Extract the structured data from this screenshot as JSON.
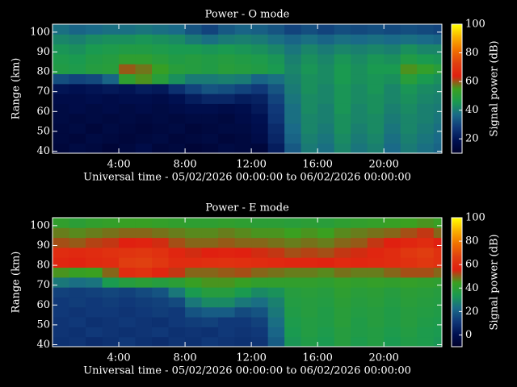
{
  "chart_data": [
    {
      "type": "heatmap",
      "title": "Power - O mode",
      "xlabel": "Universal time - 05/02/2026 00:00:00 to 06/02/2026 00:00:00",
      "ylabel": "Range (km)",
      "colorbar_label": "Signal power (dB)",
      "x_bins": [
        0,
        1,
        2,
        3,
        4,
        5,
        6,
        7,
        8,
        9,
        10,
        11,
        12,
        13,
        14,
        15,
        16,
        17,
        18,
        19,
        20,
        21,
        22,
        23,
        23.5
      ],
      "y_bins": [
        39,
        44,
        49,
        54,
        59,
        64,
        69,
        74,
        79,
        84,
        89,
        94,
        99,
        104
      ],
      "xlim": [
        0,
        23.5
      ],
      "ylim": [
        39,
        104
      ],
      "zlim": [
        10,
        100
      ],
      "xticks": [
        {
          "value": 4,
          "label": "4:00"
        },
        {
          "value": 8,
          "label": "8:00"
        },
        {
          "value": 12,
          "label": "12:00"
        },
        {
          "value": 16,
          "label": "16:00"
        },
        {
          "value": 20,
          "label": "20:00"
        }
      ],
      "yticks": [
        40,
        50,
        60,
        70,
        80,
        90,
        100
      ],
      "zticks": [
        20,
        40,
        60,
        80,
        100
      ],
      "colormap": [
        "#00002a",
        "#001050",
        "#103878",
        "#1a6a88",
        "#1a9a50",
        "#3aa020",
        "#e02010",
        "#e04010",
        "#f07000",
        "#f8b000",
        "#ffff00"
      ],
      "z": [
        [
          14,
          16,
          15,
          13,
          15,
          17,
          14,
          15,
          13,
          14,
          16,
          15,
          14,
          22,
          34,
          40,
          38,
          42,
          39,
          41,
          37,
          40,
          38,
          36
        ],
        [
          15,
          14,
          16,
          15,
          14,
          15,
          16,
          14,
          15,
          16,
          14,
          15,
          17,
          24,
          36,
          41,
          39,
          43,
          40,
          42,
          38,
          41,
          39,
          37
        ],
        [
          15,
          16,
          14,
          16,
          15,
          14,
          15,
          16,
          14,
          15,
          16,
          16,
          18,
          25,
          37,
          42,
          40,
          44,
          41,
          43,
          39,
          42,
          40,
          38
        ],
        [
          16,
          15,
          16,
          15,
          16,
          15,
          16,
          15,
          16,
          16,
          15,
          17,
          19,
          27,
          38,
          42,
          41,
          44,
          42,
          43,
          40,
          42,
          41,
          39
        ],
        [
          16,
          17,
          16,
          17,
          16,
          17,
          16,
          17,
          18,
          18,
          17,
          18,
          21,
          28,
          38,
          43,
          41,
          45,
          42,
          44,
          41,
          43,
          41,
          40
        ],
        [
          17,
          17,
          18,
          17,
          18,
          18,
          17,
          19,
          22,
          24,
          24,
          22,
          23,
          30,
          39,
          43,
          42,
          45,
          43,
          44,
          42,
          44,
          42,
          41
        ],
        [
          20,
          19,
          20,
          21,
          20,
          22,
          21,
          26,
          30,
          33,
          32,
          30,
          28,
          33,
          40,
          44,
          42,
          45,
          43,
          45,
          42,
          45,
          43,
          42
        ],
        [
          32,
          30,
          31,
          36,
          52,
          56,
          50,
          44,
          40,
          40,
          41,
          40,
          36,
          38,
          41,
          44,
          43,
          46,
          44,
          45,
          44,
          50,
          46,
          44
        ],
        [
          48,
          47,
          49,
          50,
          60,
          58,
          54,
          50,
          49,
          48,
          50,
          49,
          48,
          46,
          42,
          45,
          43,
          46,
          44,
          46,
          46,
          56,
          53,
          50
        ],
        [
          47,
          46,
          48,
          49,
          52,
          52,
          50,
          48,
          49,
          48,
          49,
          48,
          47,
          45,
          41,
          44,
          42,
          45,
          43,
          45,
          44,
          48,
          46,
          45
        ],
        [
          45,
          44,
          46,
          47,
          48,
          48,
          47,
          46,
          46,
          45,
          46,
          45,
          44,
          42,
          39,
          42,
          40,
          42,
          41,
          42,
          41,
          44,
          42,
          42
        ],
        [
          42,
          41,
          43,
          44,
          44,
          45,
          44,
          43,
          40,
          38,
          40,
          41,
          40,
          38,
          36,
          38,
          36,
          38,
          37,
          38,
          37,
          38,
          37,
          36
        ],
        [
          38,
          36,
          37,
          38,
          38,
          39,
          38,
          37,
          33,
          30,
          34,
          36,
          35,
          33,
          30,
          32,
          30,
          32,
          31,
          32,
          31,
          32,
          31,
          30
        ]
      ]
    },
    {
      "type": "heatmap",
      "title": "Power - E mode",
      "xlabel": "Universal time - 05/02/2026 00:00:00 to 06/02/2026 00:00:00",
      "ylabel": "Range (km)",
      "colorbar_label": "Signal power (dB)",
      "x_bins": [
        0,
        1,
        2,
        3,
        4,
        5,
        6,
        7,
        8,
        9,
        10,
        11,
        12,
        13,
        14,
        15,
        16,
        17,
        18,
        19,
        20,
        21,
        22,
        23,
        23.5
      ],
      "y_bins": [
        39,
        44,
        49,
        54,
        59,
        64,
        69,
        74,
        79,
        84,
        89,
        94,
        99,
        104
      ],
      "xlim": [
        0,
        23.5
      ],
      "ylim": [
        39,
        104
      ],
      "zlim": [
        -10,
        100
      ],
      "xticks": [
        {
          "value": 4,
          "label": "4:00"
        },
        {
          "value": 8,
          "label": "8:00"
        },
        {
          "value": 12,
          "label": "12:00"
        },
        {
          "value": 16,
          "label": "16:00"
        },
        {
          "value": 20,
          "label": "20:00"
        }
      ],
      "yticks": [
        40,
        50,
        60,
        70,
        80,
        90,
        100
      ],
      "zticks": [
        0,
        20,
        40,
        60,
        80,
        100
      ],
      "colormap": [
        "#00002a",
        "#001050",
        "#103878",
        "#1a6a88",
        "#1a9a50",
        "#3aa020",
        "#e02010",
        "#e04010",
        "#f07000",
        "#f8b000",
        "#ffff00"
      ],
      "z": [
        [
          10,
          11,
          9,
          10,
          12,
          10,
          9,
          11,
          10,
          12,
          11,
          10,
          11,
          20,
          33,
          36,
          34,
          38,
          35,
          37,
          34,
          36,
          35,
          33
        ],
        [
          11,
          10,
          12,
          11,
          10,
          11,
          12,
          10,
          11,
          10,
          12,
          11,
          12,
          22,
          34,
          37,
          35,
          38,
          36,
          37,
          35,
          37,
          35,
          34
        ],
        [
          11,
          12,
          10,
          11,
          12,
          11,
          10,
          12,
          13,
          14,
          12,
          12,
          14,
          24,
          35,
          37,
          36,
          39,
          36,
          38,
          36,
          38,
          36,
          35
        ],
        [
          12,
          11,
          12,
          12,
          11,
          12,
          13,
          12,
          18,
          20,
          20,
          16,
          18,
          26,
          36,
          38,
          36,
          39,
          37,
          38,
          36,
          38,
          37,
          36
        ],
        [
          12,
          13,
          12,
          13,
          12,
          13,
          14,
          16,
          26,
          30,
          30,
          26,
          24,
          28,
          37,
          38,
          37,
          40,
          38,
          39,
          37,
          39,
          38,
          37
        ],
        [
          14,
          13,
          14,
          15,
          14,
          16,
          18,
          26,
          34,
          38,
          38,
          34,
          30,
          32,
          38,
          39,
          38,
          41,
          39,
          40,
          38,
          40,
          39,
          38
        ],
        [
          26,
          24,
          25,
          34,
          38,
          40,
          38,
          40,
          44,
          46,
          46,
          44,
          42,
          42,
          42,
          42,
          41,
          43,
          42,
          43,
          42,
          43,
          42,
          41
        ],
        [
          46,
          44,
          45,
          50,
          60,
          62,
          58,
          54,
          50,
          50,
          51,
          52,
          50,
          49,
          48,
          48,
          47,
          49,
          48,
          48,
          50,
          52,
          52,
          50
        ],
        [
          58,
          57,
          59,
          60,
          66,
          67,
          64,
          60,
          60,
          61,
          62,
          61,
          60,
          59,
          58,
          58,
          57,
          59,
          58,
          59,
          60,
          62,
          64,
          62
        ],
        [
          60,
          59,
          60,
          62,
          63,
          64,
          62,
          58,
          55,
          56,
          57,
          56,
          55,
          54,
          52,
          53,
          52,
          54,
          55,
          58,
          60,
          64,
          66,
          62
        ],
        [
          52,
          51,
          53,
          54,
          56,
          57,
          55,
          52,
          50,
          50,
          51,
          50,
          50,
          49,
          48,
          49,
          48,
          50,
          51,
          54,
          56,
          58,
          60,
          56
        ],
        [
          48,
          47,
          48,
          49,
          50,
          50,
          49,
          48,
          47,
          47,
          48,
          47,
          46,
          46,
          45,
          46,
          45,
          47,
          48,
          49,
          50,
          52,
          54,
          50
        ],
        [
          42,
          40,
          42,
          43,
          44,
          44,
          43,
          42,
          41,
          41,
          42,
          41,
          40,
          40,
          39,
          40,
          39,
          41,
          42,
          43,
          44,
          45,
          46,
          44
        ]
      ]
    }
  ]
}
